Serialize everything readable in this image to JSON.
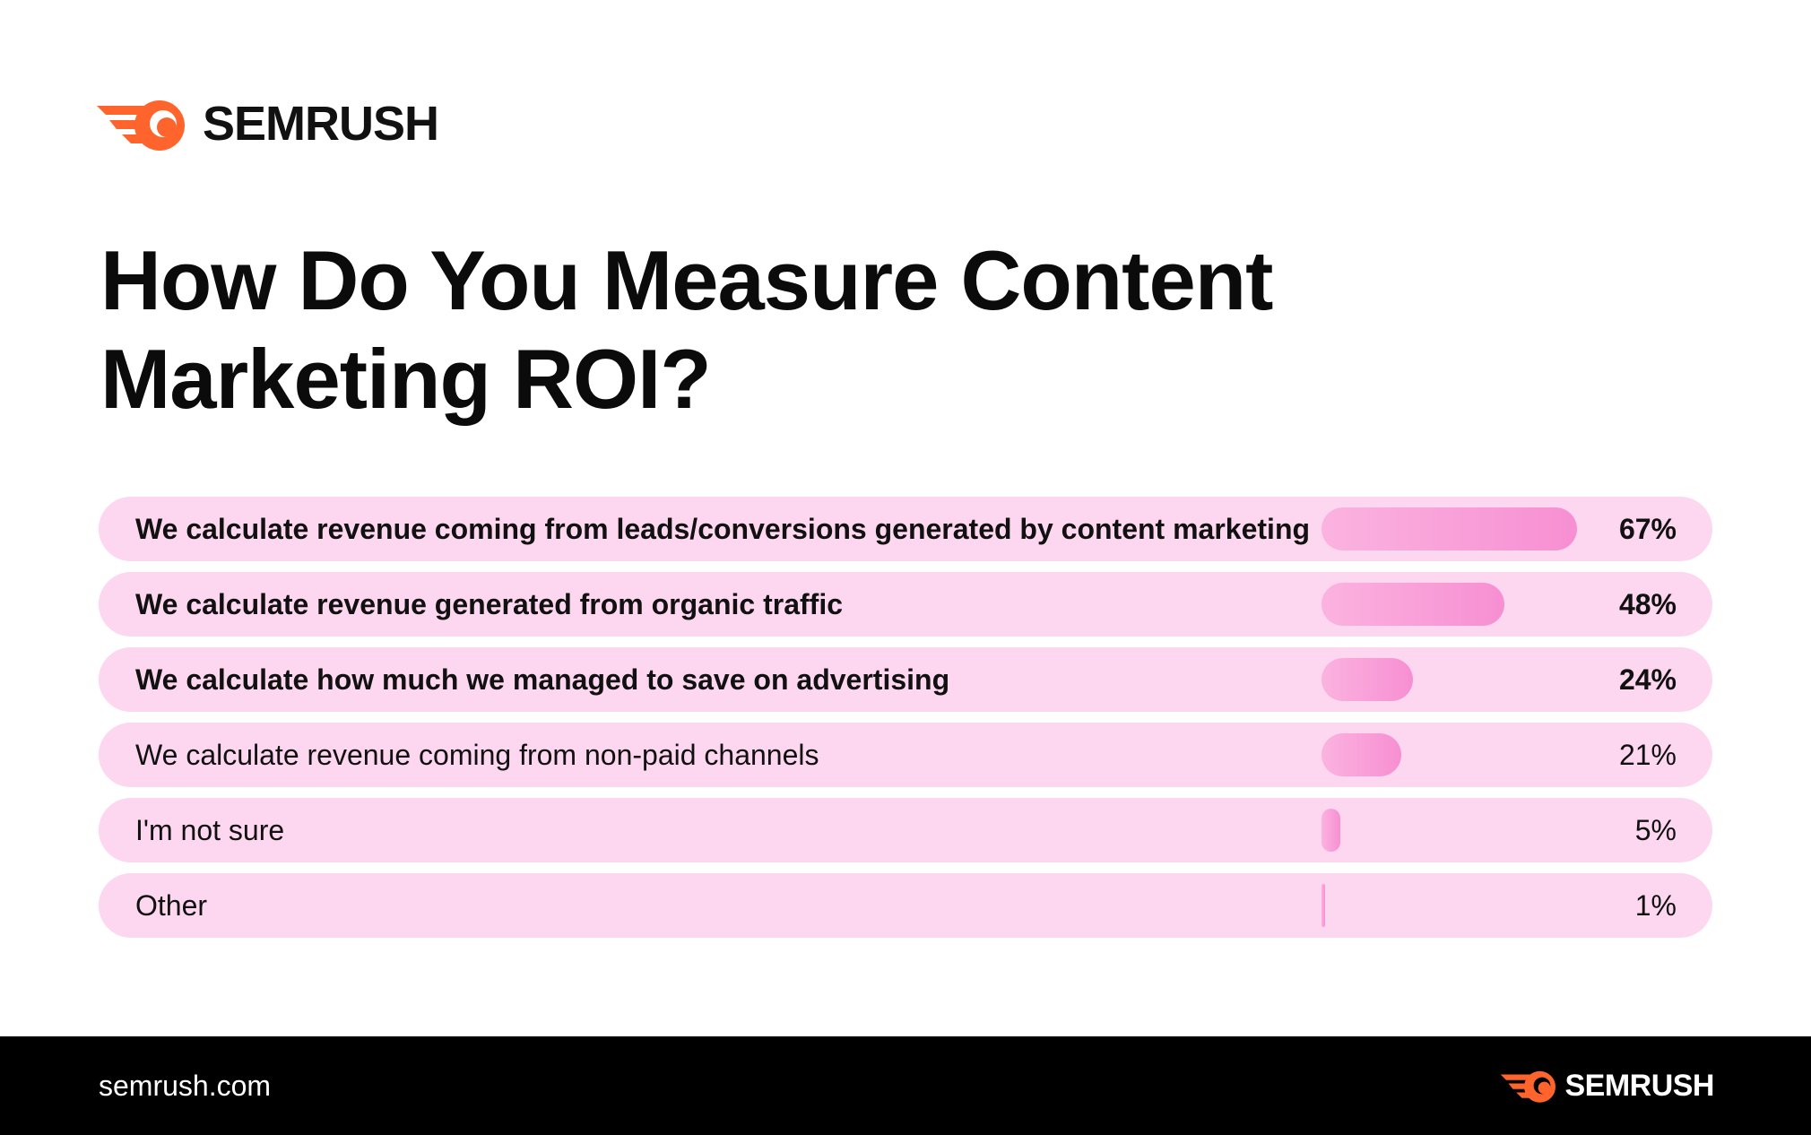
{
  "brand": {
    "name": "SEMRUSH",
    "logo_icon": "semrush-fireball-icon",
    "accent_color": "#ff642d",
    "site": "semrush.com"
  },
  "chart_data": {
    "type": "bar",
    "orientation": "horizontal",
    "title": "How Do You Measure Content Marketing ROI?",
    "categories": [
      "We calculate revenue coming from leads/conversions generated by content marketing",
      "We calculate revenue generated from organic traffic",
      "We calculate how much we managed to save on advertising",
      "We calculate revenue coming from non-paid channels",
      "I'm not sure",
      "Other"
    ],
    "values": [
      67,
      48,
      24,
      21,
      5,
      1
    ],
    "value_labels": [
      "67%",
      "48%",
      "24%",
      "21%",
      "5%",
      "1%"
    ],
    "unit": "%",
    "xlim": [
      0,
      100
    ],
    "bar_color": "#f78fd2",
    "row_color": "#fdd6ef",
    "grid": false,
    "legend": "none"
  }
}
